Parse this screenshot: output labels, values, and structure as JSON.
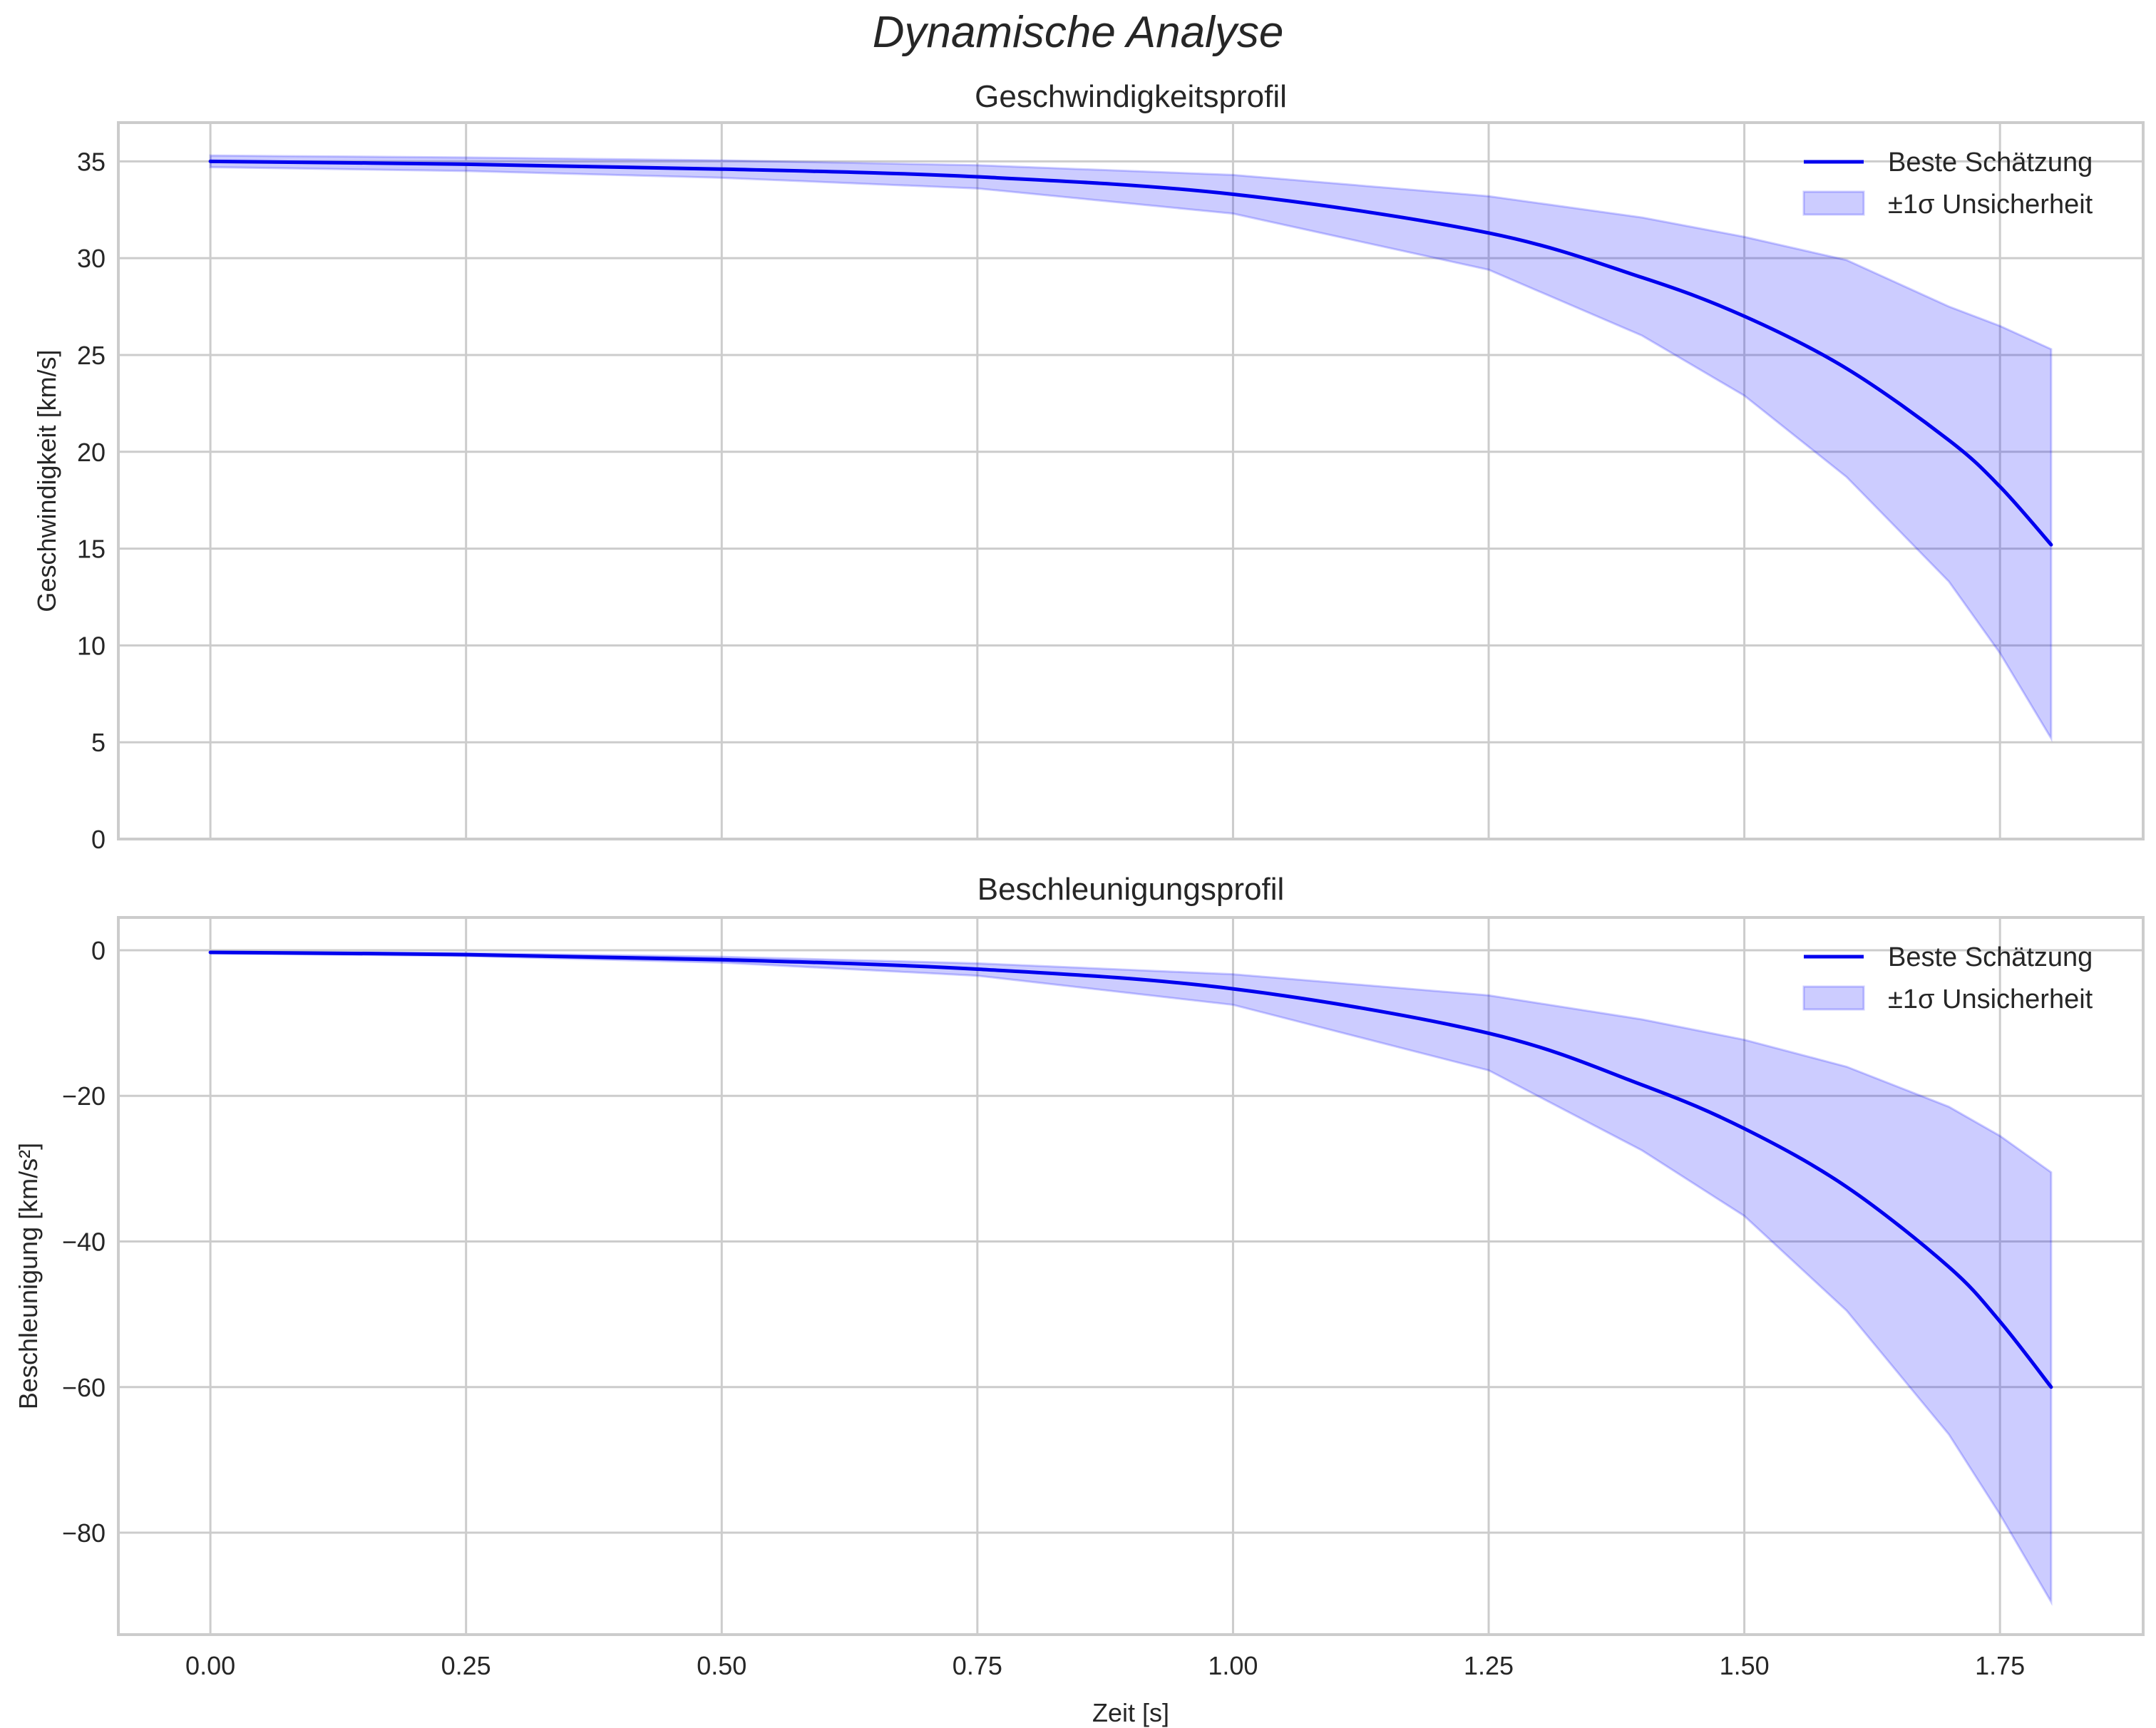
{
  "figure": {
    "suptitle": "Dynamische Analyse",
    "xlabel": "Zeit [s]",
    "legend": {
      "line_label": "Beste Schätzung",
      "band_label": "±1σ Unsicherheit"
    },
    "colors": {
      "line": "#0000ee",
      "band_fill": "#0000ff33",
      "band_edge": "#7777ff",
      "grid": "#cccccc",
      "spine": "#cccccc"
    }
  },
  "chart_data": [
    {
      "type": "line",
      "title": "Geschwindigkeitsprofil",
      "xlabel": "",
      "ylabel": "Geschwindigkeit [km/s]",
      "xlim": [
        -0.09,
        1.89
      ],
      "ylim": [
        0,
        37
      ],
      "xticks": [
        0.0,
        0.25,
        0.5,
        0.75,
        1.0,
        1.25,
        1.5,
        1.75
      ],
      "xtick_labels": [
        "0.00",
        "0.25",
        "0.50",
        "0.75",
        "1.00",
        "1.25",
        "1.50",
        "1.75"
      ],
      "yticks": [
        0,
        5,
        10,
        15,
        20,
        25,
        30,
        35
      ],
      "ytick_labels": [
        "0",
        "5",
        "10",
        "15",
        "20",
        "25",
        "30",
        "35"
      ],
      "grid": true,
      "legend_position": "upper right",
      "x": [
        0.0,
        0.25,
        0.5,
        0.75,
        1.0,
        1.25,
        1.4,
        1.5,
        1.6,
        1.7,
        1.75,
        1.8
      ],
      "series": [
        {
          "name": "Beste Schätzung",
          "values": [
            35.0,
            34.85,
            34.6,
            34.2,
            33.3,
            31.3,
            29.0,
            27.0,
            24.3,
            20.6,
            18.2,
            15.2
          ]
        },
        {
          "name": "±1σ Unsicherheit (obere Grenze)",
          "values": [
            35.3,
            35.2,
            35.05,
            34.8,
            34.3,
            33.2,
            32.1,
            31.1,
            29.9,
            27.5,
            26.5,
            25.3
          ]
        },
        {
          "name": "±1σ Unsicherheit (untere Grenze)",
          "values": [
            34.7,
            34.5,
            34.15,
            33.6,
            32.3,
            29.4,
            26.0,
            22.9,
            18.7,
            13.3,
            9.6,
            5.2
          ]
        }
      ]
    },
    {
      "type": "line",
      "title": "Beschleunigungsprofil",
      "xlabel": "Zeit [s]",
      "ylabel": "Beschleunigung [km/s²]",
      "xlim": [
        -0.09,
        1.89
      ],
      "ylim": [
        -94,
        4.5
      ],
      "xticks": [
        0.0,
        0.25,
        0.5,
        0.75,
        1.0,
        1.25,
        1.5,
        1.75
      ],
      "xtick_labels": [
        "0.00",
        "0.25",
        "0.50",
        "0.75",
        "1.00",
        "1.25",
        "1.50",
        "1.75"
      ],
      "yticks": [
        0,
        -20,
        -40,
        -60,
        -80
      ],
      "ytick_labels": [
        "0",
        "−20",
        "−40",
        "−60",
        "−80"
      ],
      "grid": true,
      "legend_position": "upper right",
      "x": [
        0.0,
        0.25,
        0.5,
        0.75,
        1.0,
        1.25,
        1.4,
        1.5,
        1.6,
        1.7,
        1.75,
        1.8
      ],
      "series": [
        {
          "name": "Beste Schätzung",
          "values": [
            -0.3,
            -0.6,
            -1.3,
            -2.6,
            -5.3,
            -11.4,
            -18.5,
            -24.5,
            -32.5,
            -43.5,
            -51.0,
            -60.0
          ]
        },
        {
          "name": "±1σ Unsicherheit (obere Grenze)",
          "values": [
            -0.2,
            -0.4,
            -0.9,
            -1.8,
            -3.3,
            -6.2,
            -9.5,
            -12.3,
            -16.0,
            -21.5,
            -25.5,
            -30.5
          ]
        },
        {
          "name": "±1σ Unsicherheit (untere Grenze)",
          "values": [
            -0.4,
            -0.8,
            -1.7,
            -3.5,
            -7.5,
            -16.5,
            -27.5,
            -36.5,
            -49.5,
            -66.5,
            -77.5,
            -89.5
          ]
        }
      ]
    }
  ]
}
